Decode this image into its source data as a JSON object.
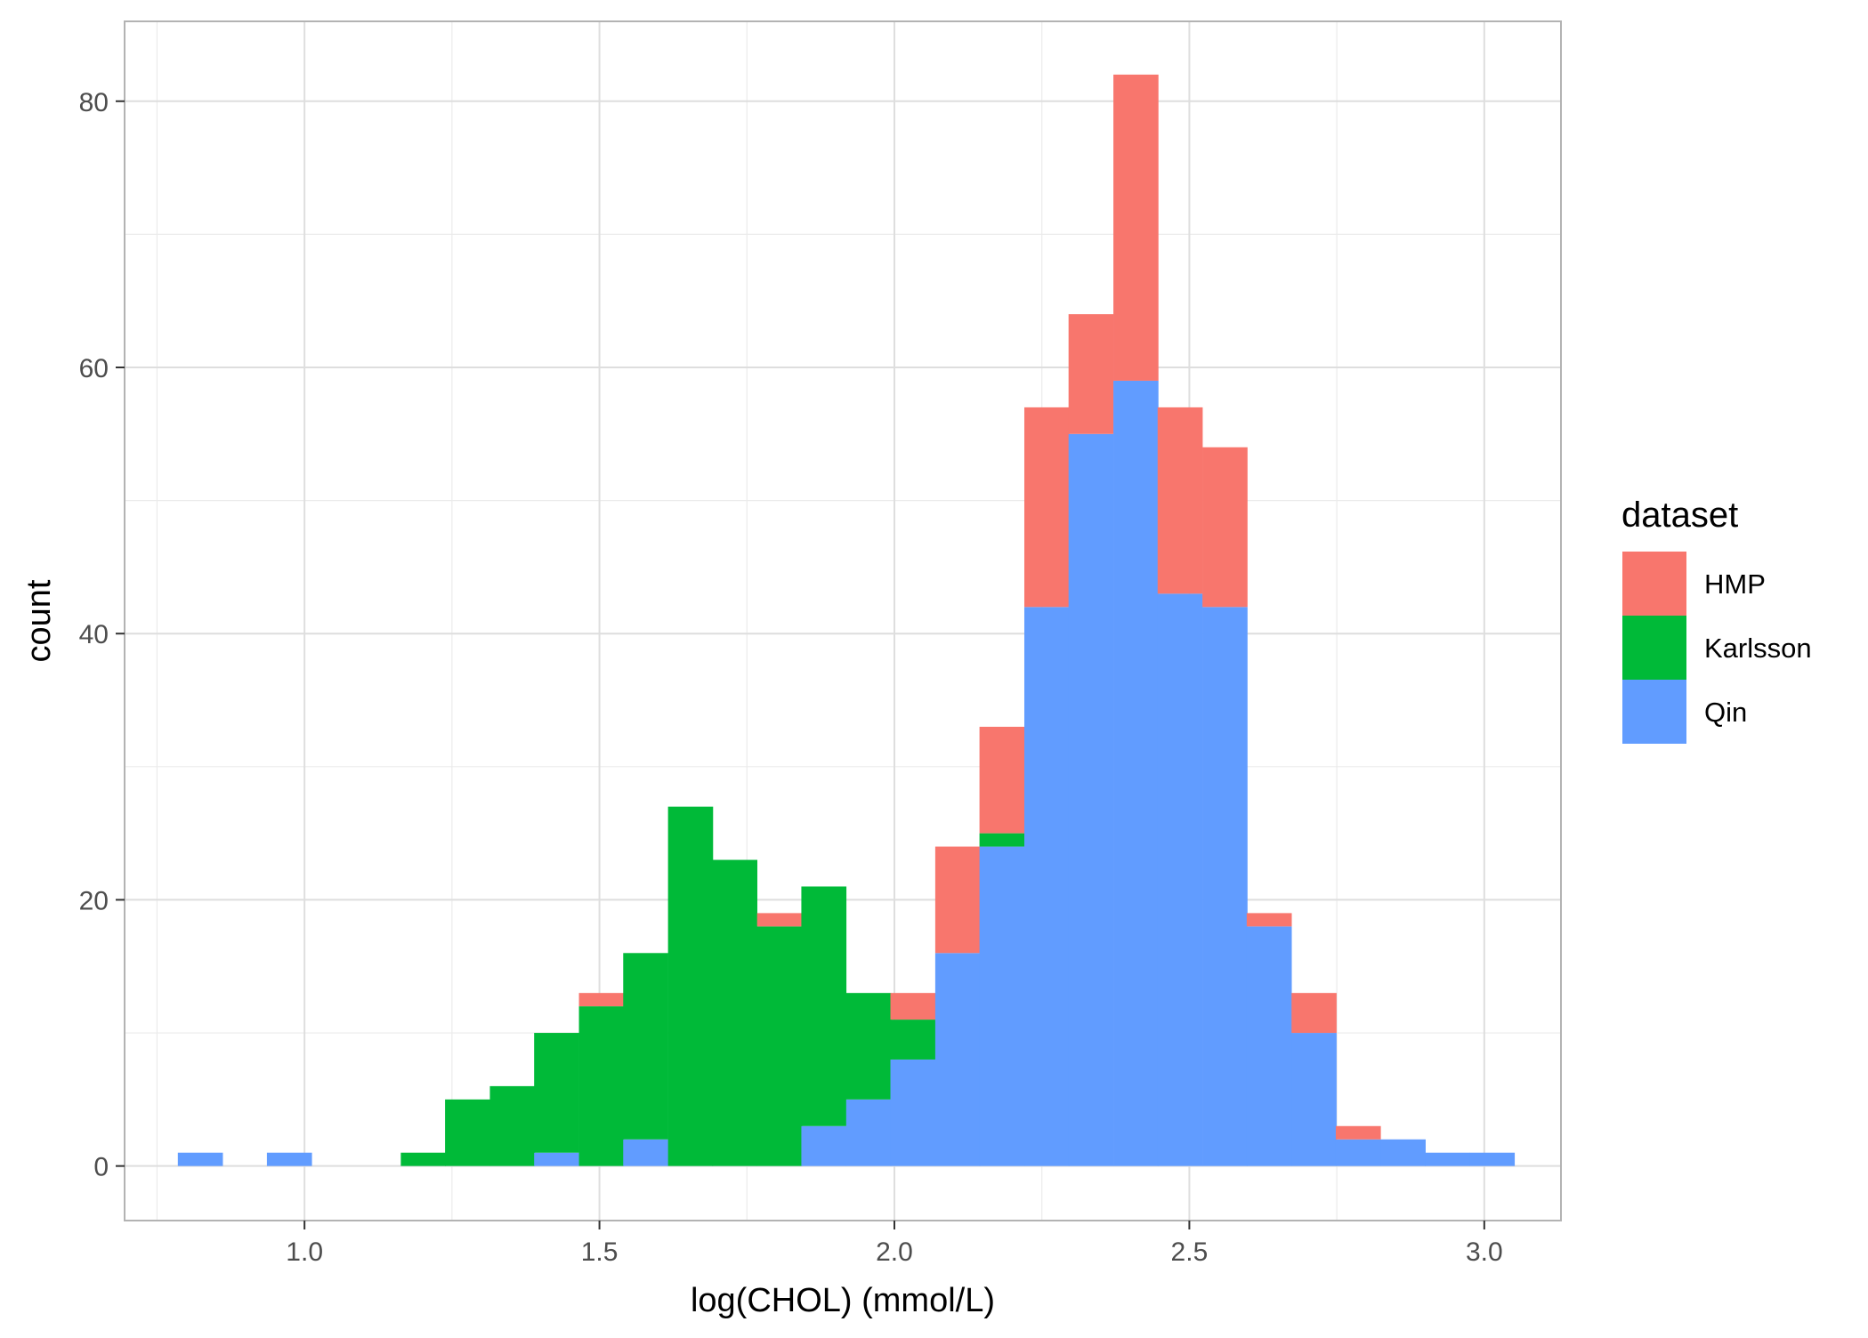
{
  "chart_data": {
    "type": "bar",
    "subtype": "stacked-histogram",
    "title": "",
    "xlabel": "log(CHOL) (mmol/L)",
    "ylabel": "count",
    "xlim": [
      0.695,
      3.13
    ],
    "ylim": [
      -4.1,
      86.0
    ],
    "x_ticks": [
      1.0,
      1.5,
      2.0,
      2.5,
      3.0
    ],
    "x_tick_labels": [
      "1.0",
      "1.5",
      "2.0",
      "2.5",
      "3.0"
    ],
    "y_ticks": [
      0,
      20,
      40,
      60,
      80
    ],
    "y_tick_labels": [
      "0",
      "20",
      "40",
      "60",
      "80"
    ],
    "grid": true,
    "legend": {
      "title": "dataset",
      "position": "right",
      "entries": [
        "HMP",
        "Karlsson",
        "Qin"
      ]
    },
    "stack_order": [
      "Qin",
      "Karlsson",
      "HMP"
    ],
    "bin_width": 0.0755,
    "x": [
      0.823,
      0.899,
      0.974,
      1.05,
      1.125,
      1.201,
      1.276,
      1.352,
      1.427,
      1.503,
      1.578,
      1.654,
      1.729,
      1.805,
      1.88,
      1.956,
      2.031,
      2.107,
      2.182,
      2.258,
      2.333,
      2.409,
      2.484,
      2.56,
      2.635,
      2.711,
      2.786,
      2.862,
      2.937,
      3.013
    ],
    "series": [
      {
        "name": "HMP",
        "color": "#F8766D",
        "values": [
          0,
          0,
          0,
          0,
          0,
          0,
          0,
          0,
          0,
          1,
          0,
          0,
          0,
          1,
          0,
          0,
          2,
          8,
          8,
          15,
          9,
          23,
          14,
          12,
          1,
          3,
          1,
          0,
          0,
          0
        ]
      },
      {
        "name": "Karlsson",
        "color": "#00BA38",
        "values": [
          0,
          0,
          0,
          0,
          0,
          1,
          5,
          6,
          9,
          12,
          14,
          27,
          23,
          18,
          18,
          8,
          3,
          0,
          1,
          0,
          0,
          0,
          0,
          0,
          0,
          0,
          0,
          0,
          0,
          0
        ]
      },
      {
        "name": "Qin",
        "color": "#619CFF",
        "values": [
          1,
          0,
          1,
          0,
          0,
          0,
          0,
          0,
          1,
          0,
          2,
          0,
          0,
          0,
          3,
          5,
          8,
          16,
          24,
          42,
          55,
          59,
          43,
          42,
          18,
          10,
          2,
          2,
          1,
          1
        ]
      }
    ]
  }
}
